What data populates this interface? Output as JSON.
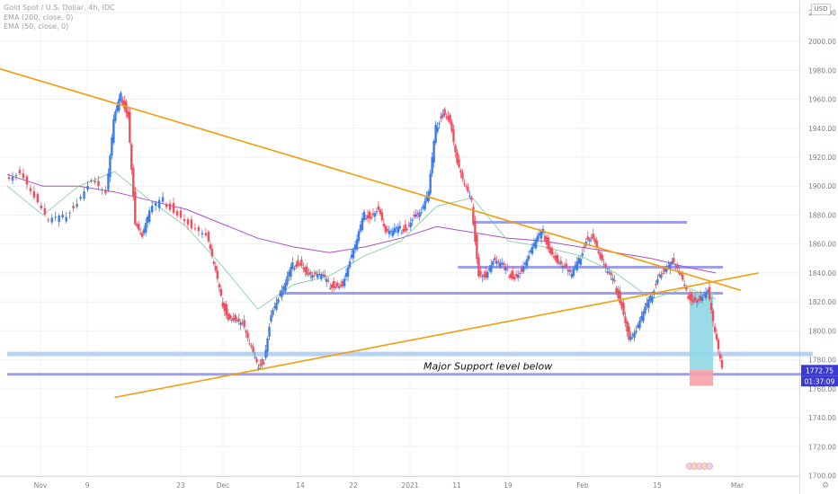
{
  "legend": {
    "line1": "Gold Spot / U.S. Dollar, 4h, IDC",
    "line2": "EMA (200, close, 0)",
    "line3": "EMA (50, close, 0)"
  },
  "currency_badge": "USD",
  "annotation": "Major Support level below",
  "price_label": "1772.75",
  "countdown_label": "01:37:09",
  "colors": {
    "up": "#3d7be8",
    "down": "#f04e5e",
    "trendline": "#f59b0c",
    "level": "#8c8cf0",
    "level_light": "#aac8f0",
    "ema200": "#a950c8",
    "ema50": "#7ec89c",
    "target_box": "#8ed8e6",
    "stop_box": "#f7a1a9"
  },
  "chart_data": {
    "type": "line",
    "title": "Gold Spot / U.S. Dollar, 4h, IDC",
    "ylim": [
      1700,
      2028
    ],
    "y_ticks": [
      "1700.00",
      "1720.00",
      "1740.00",
      "1760.00",
      "1780.00",
      "1800.00",
      "1820.00",
      "1840.00",
      "1860.00",
      "1880.00",
      "1900.00",
      "1920.00",
      "1940.00",
      "1960.00",
      "1980.00",
      "2000.00",
      "2020.00"
    ],
    "x_ticks": [
      "Nov",
      "9",
      "23",
      "Dec",
      "14",
      "22",
      "2021",
      "11",
      "19",
      "Feb",
      "15",
      "Mar"
    ],
    "series": [
      {
        "values": [
          [
            0,
            1905
          ],
          [
            4,
            1910
          ],
          [
            8,
            1892
          ],
          [
            12,
            1875
          ],
          [
            16,
            1878
          ],
          [
            20,
            1890
          ],
          [
            24,
            1905
          ],
          [
            28,
            1895
          ],
          [
            30,
            1945
          ],
          [
            32,
            1962
          ],
          [
            34,
            1950
          ],
          [
            36,
            1875
          ],
          [
            38,
            1865
          ],
          [
            40,
            1882
          ],
          [
            44,
            1890
          ],
          [
            48,
            1882
          ],
          [
            52,
            1872
          ],
          [
            56,
            1866
          ],
          [
            58,
            1845
          ],
          [
            60,
            1822
          ],
          [
            62,
            1810
          ],
          [
            64,
            1808
          ],
          [
            66,
            1805
          ],
          [
            68,
            1790
          ],
          [
            70,
            1776
          ],
          [
            72,
            1780
          ],
          [
            74,
            1812
          ],
          [
            76,
            1822
          ],
          [
            78,
            1832
          ],
          [
            80,
            1845
          ],
          [
            82,
            1848
          ],
          [
            84,
            1840
          ],
          [
            86,
            1838
          ],
          [
            88,
            1838
          ],
          [
            90,
            1832
          ],
          [
            92,
            1832
          ],
          [
            94,
            1832
          ],
          [
            96,
            1848
          ],
          [
            98,
            1862
          ],
          [
            100,
            1880
          ],
          [
            102,
            1880
          ],
          [
            104,
            1885
          ],
          [
            106,
            1868
          ],
          [
            108,
            1868
          ],
          [
            110,
            1870
          ],
          [
            112,
            1872
          ],
          [
            114,
            1880
          ],
          [
            116,
            1882
          ],
          [
            118,
            1895
          ],
          [
            120,
            1940
          ],
          [
            122,
            1952
          ],
          [
            124,
            1945
          ],
          [
            126,
            1916
          ],
          [
            128,
            1900
          ],
          [
            130,
            1888
          ],
          [
            132,
            1840
          ],
          [
            134,
            1838
          ],
          [
            136,
            1848
          ],
          [
            138,
            1846
          ],
          [
            140,
            1840
          ],
          [
            142,
            1838
          ],
          [
            144,
            1842
          ],
          [
            146,
            1852
          ],
          [
            148,
            1862
          ],
          [
            150,
            1868
          ],
          [
            152,
            1856
          ],
          [
            154,
            1848
          ],
          [
            156,
            1844
          ],
          [
            158,
            1838
          ],
          [
            160,
            1848
          ],
          [
            162,
            1864
          ],
          [
            164,
            1865
          ],
          [
            166,
            1850
          ],
          [
            168,
            1840
          ],
          [
            170,
            1832
          ],
          [
            172,
            1818
          ],
          [
            174,
            1795
          ],
          [
            176,
            1800
          ],
          [
            178,
            1812
          ],
          [
            180,
            1822
          ],
          [
            182,
            1838
          ],
          [
            184,
            1842
          ],
          [
            186,
            1848
          ],
          [
            188,
            1840
          ],
          [
            190,
            1826
          ],
          [
            192,
            1822
          ],
          [
            194,
            1822
          ],
          [
            196,
            1828
          ],
          [
            198,
            1798
          ],
          [
            200,
            1772
          ]
        ]
      },
      {
        "name": "EMA (200, close, 0)",
        "values": [
          [
            0,
            1908
          ],
          [
            10,
            1900
          ],
          [
            20,
            1900
          ],
          [
            30,
            1896
          ],
          [
            40,
            1890
          ],
          [
            50,
            1884
          ],
          [
            60,
            1874
          ],
          [
            70,
            1864
          ],
          [
            80,
            1858
          ],
          [
            90,
            1854
          ],
          [
            100,
            1858
          ],
          [
            110,
            1864
          ],
          [
            120,
            1872
          ],
          [
            130,
            1868
          ],
          [
            140,
            1864
          ],
          [
            150,
            1862
          ],
          [
            160,
            1858
          ],
          [
            170,
            1854
          ],
          [
            180,
            1850
          ],
          [
            190,
            1844
          ],
          [
            198,
            1840
          ]
        ]
      },
      {
        "name": "EMA (50, close, 0)",
        "values": [
          [
            0,
            1900
          ],
          [
            10,
            1880
          ],
          [
            20,
            1900
          ],
          [
            30,
            1910
          ],
          [
            40,
            1890
          ],
          [
            50,
            1872
          ],
          [
            60,
            1845
          ],
          [
            70,
            1815
          ],
          [
            80,
            1832
          ],
          [
            90,
            1838
          ],
          [
            100,
            1852
          ],
          [
            110,
            1862
          ],
          [
            120,
            1886
          ],
          [
            130,
            1892
          ],
          [
            140,
            1862
          ],
          [
            150,
            1858
          ],
          [
            160,
            1852
          ],
          [
            170,
            1840
          ],
          [
            180,
            1822
          ],
          [
            190,
            1830
          ],
          [
            198,
            1822
          ]
        ]
      }
    ],
    "trendlines": [
      {
        "from": [
          0,
          1981
        ],
        "to": [
          205,
          1828
        ]
      },
      {
        "from": [
          32,
          1754
        ],
        "to": [
          210,
          1840
        ]
      }
    ],
    "levels": [
      {
        "y": 1875,
        "x0": 130,
        "x1": 190
      },
      {
        "y": 1844,
        "x0": 126,
        "x1": 200
      },
      {
        "y": 1826,
        "x0": 76,
        "x1": 200
      },
      {
        "y": 1784,
        "x0": 0,
        "x1": 205
      },
      {
        "y": 1770,
        "x0": 0,
        "x1": 205
      }
    ]
  }
}
